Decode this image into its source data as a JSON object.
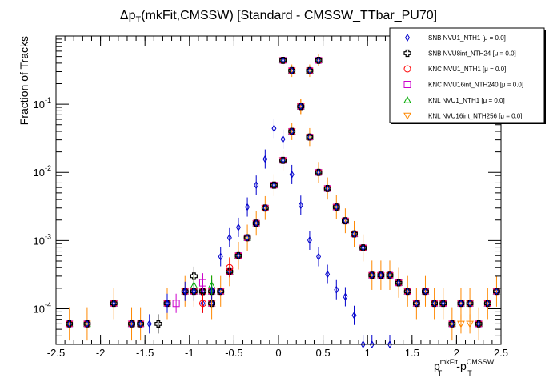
{
  "chart_data": {
    "type": "scatter",
    "title": "Δp_T(mkFit,CMSSW) [Standard - CMSSW_TTbar_PU70]",
    "title_parts": {
      "delta": "Δp",
      "sub": "T",
      "rest": "(mkFit,CMSSW) [Standard - CMSSW_TTbar_PU70]"
    },
    "ylabel": "Fraction of Tracks",
    "xlabel_parts": {
      "p1": "p",
      "sup1": "mkFit",
      "sub1": "T",
      "dash": "-p",
      "sup2": "CMSSW",
      "sub2": "T"
    },
    "xlim": [
      -2.5,
      2.5
    ],
    "ylim": [
      3e-05,
      1.0
    ],
    "y_scale": "log",
    "grid": false,
    "legend_position": "top-right",
    "x_ticks": [
      -2.5,
      -2,
      -1.5,
      -1,
      -0.5,
      0,
      0.5,
      1,
      1.5,
      2,
      2.5
    ],
    "x_tick_labels": [
      "-2.5",
      "-2",
      "-1.5",
      "-1",
      "-0.5",
      "0",
      "0.5",
      "1",
      "1.5",
      "2",
      "2.5"
    ],
    "y_ticks": [
      0.0001,
      0.001,
      0.01,
      0.1
    ],
    "y_tick_labels": [
      {
        "base": "10",
        "exp": "-4"
      },
      {
        "base": "10",
        "exp": "-3"
      },
      {
        "base": "10",
        "exp": "-2"
      },
      {
        "base": "10",
        "exp": "-1"
      }
    ],
    "series": [
      {
        "name": "SNB NVU1_NTH1 [μ = 0.0]",
        "marker": "diamond",
        "color": "#0000cc",
        "points": [
          [
            -0.05,
            0.0442
          ],
          [
            0.05,
            0.0307
          ],
          [
            -0.15,
            0.0157
          ],
          [
            0.15,
            0.0093
          ],
          [
            -0.25,
            0.0065
          ],
          [
            0.25,
            0.0033
          ],
          [
            -0.35,
            0.0031
          ],
          [
            0.35,
            0.00101
          ],
          [
            -0.45,
            0.00156
          ],
          [
            0.45,
            0.00058
          ],
          [
            -0.55,
            0.0011
          ],
          [
            0.55,
            0.00032
          ],
          [
            -0.65,
            0.00058
          ],
          [
            0.65,
            0.00019
          ],
          [
            -0.75,
            0.00019
          ],
          [
            0.75,
            0.00015
          ],
          [
            -0.85,
            0.00012
          ],
          [
            0.85,
            8e-05
          ],
          [
            -0.95,
            0.00018
          ],
          [
            0.95,
            3e-05
          ],
          [
            -1.05,
            0.00018
          ],
          [
            1.05,
            3e-05
          ],
          [
            -1.25,
            0.00012
          ],
          [
            1.25,
            3e-05
          ],
          [
            -1.45,
            6e-05
          ]
        ]
      },
      {
        "name": "SNB NVU8int_NTH24 [μ = 0.0]",
        "marker": "cross",
        "color": "#000000",
        "points": [
          [
            -1.35,
            6e-05
          ],
          [
            -0.95,
            0.0003
          ],
          [
            -0.85,
            0.00018
          ]
        ]
      },
      {
        "name": "KNC NVU1_NTH1 [μ = 0.0]",
        "marker": "circle",
        "color": "#ff0000",
        "points": [
          [
            -0.55,
            0.0004
          ],
          [
            -0.85,
            0.00012
          ]
        ]
      },
      {
        "name": "KNC NVU16int_NTH240 [μ = 0.0]",
        "marker": "square",
        "color": "#cc00cc",
        "points": [
          [
            -1.15,
            0.00012
          ],
          [
            -0.85,
            0.00024
          ]
        ]
      },
      {
        "name": "KNL NVU1_NTH1 [μ = 0.0]",
        "marker": "triangle-up",
        "color": "#00aa00",
        "points": [
          [
            -0.95,
            0.00022
          ],
          [
            -0.75,
            0.00022
          ]
        ]
      },
      {
        "name": "KNL NVU16int_NTH256 [μ = 0.0]",
        "marker": "triangle-down",
        "color": "#ff8800",
        "points": [
          [
            2.05,
            6e-05
          ],
          [
            2.15,
            6e-05
          ]
        ]
      }
    ],
    "overlay_points": [
      [
        -2.35,
        6e-05
      ],
      [
        -2.15,
        6e-05
      ],
      [
        -1.85,
        0.00012
      ],
      [
        -1.65,
        6e-05
      ],
      [
        -1.55,
        6e-05
      ],
      [
        -1.25,
        0.00012
      ],
      [
        -1.05,
        0.00018
      ],
      [
        -0.95,
        0.00018
      ],
      [
        -0.85,
        0.00018
      ],
      [
        -0.75,
        0.00012
      ],
      [
        -0.75,
        0.00018
      ],
      [
        -0.65,
        0.00018
      ],
      [
        -0.55,
        0.00035
      ],
      [
        -0.45,
        0.0006
      ],
      [
        -0.35,
        0.0011
      ],
      [
        -0.25,
        0.0018
      ],
      [
        -0.15,
        0.003
      ],
      [
        -0.05,
        0.0065
      ],
      [
        0.05,
        0.015
      ],
      [
        0.15,
        0.04
      ],
      [
        0.25,
        0.093
      ],
      [
        0.35,
        0.31
      ],
      [
        0.45,
        0.44
      ],
      [
        0.05,
        0.44
      ],
      [
        0.15,
        0.31
      ],
      [
        0.25,
        0.093
      ],
      [
        0.35,
        0.033
      ],
      [
        0.45,
        0.01
      ],
      [
        0.55,
        0.0058
      ],
      [
        0.65,
        0.0031
      ],
      [
        0.75,
        0.00195
      ],
      [
        0.85,
        0.00125
      ],
      [
        0.95,
        0.00078
      ],
      [
        1.05,
        0.00031
      ],
      [
        1.15,
        0.00031
      ],
      [
        1.25,
        0.00031
      ],
      [
        1.35,
        0.00024
      ],
      [
        1.45,
        0.00018
      ],
      [
        1.55,
        0.00012
      ],
      [
        1.65,
        0.00018
      ],
      [
        1.75,
        0.00012
      ],
      [
        1.85,
        0.00012
      ],
      [
        1.95,
        6e-05
      ],
      [
        2.05,
        0.00012
      ],
      [
        2.15,
        0.00012
      ],
      [
        2.25,
        6e-05
      ],
      [
        2.35,
        0.00012
      ],
      [
        2.45,
        0.00018
      ]
    ]
  }
}
